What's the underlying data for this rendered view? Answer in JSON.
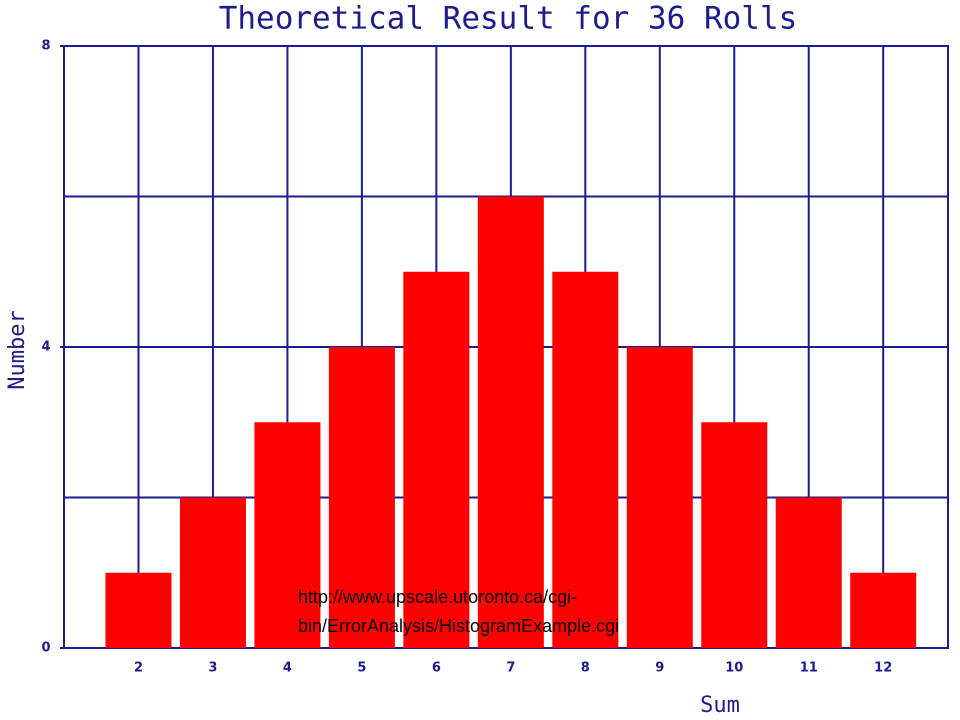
{
  "chart_data": {
    "type": "bar",
    "title": "Theoretical Result for 36 Rolls",
    "x_label": "Sum",
    "y_label": "Number",
    "categories": [
      "2",
      "3",
      "4",
      "5",
      "6",
      "7",
      "8",
      "9",
      "10",
      "11",
      "12"
    ],
    "values": [
      1,
      2,
      3,
      4,
      5,
      6,
      5,
      4,
      3,
      2,
      1
    ],
    "color": "#ff0000",
    "axis_color": "#1c1c8e",
    "ylim": [
      0,
      8
    ],
    "yticks": [
      0,
      4,
      8
    ],
    "ygrid": [
      0,
      2,
      4,
      6,
      8
    ],
    "grid": true,
    "annotation": [
      "http://www.upscale.utoronto.ca/cgi-",
      "bin/ErrorAnalysis/HistogramExample.cgi"
    ]
  }
}
